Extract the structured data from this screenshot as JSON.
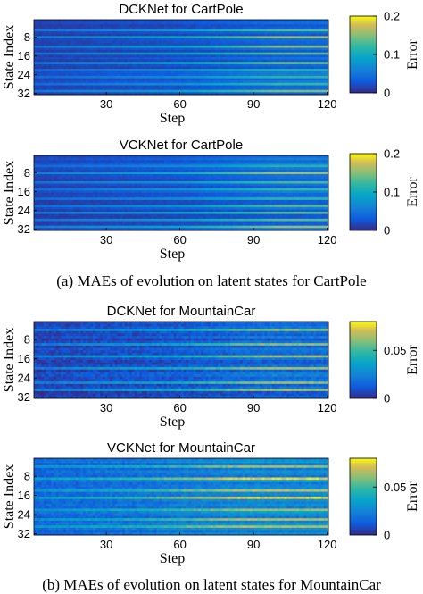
{
  "captions": {
    "a": "(a) MAEs of evolution on latent states for CartPole",
    "b": "(b) MAEs of evolution on latent states for MountainCar"
  },
  "chart_data": [
    {
      "type": "heatmap",
      "title": "DCKNet for CartPole",
      "xlabel": "Step",
      "ylabel": "State Index",
      "colorbar_label": "Error",
      "x_ticks": [
        30,
        60,
        90,
        120
      ],
      "y_ticks": [
        8,
        16,
        24,
        32
      ],
      "colorbar_ticks": [
        "0",
        "0.1",
        "0.2"
      ],
      "xlim": [
        1,
        120
      ],
      "ylim": [
        1,
        32
      ],
      "clim": [
        0,
        0.2
      ],
      "colormap": "parula",
      "rows": 32,
      "cols": 120,
      "bright_rows": [
        5,
        8,
        12,
        15,
        19,
        22,
        25,
        28,
        31
      ],
      "error_rise_starts_at_step": 60
    },
    {
      "type": "heatmap",
      "title": "VCKNet for CartPole",
      "xlabel": "Step",
      "ylabel": "State Index",
      "colorbar_label": "Error",
      "x_ticks": [
        30,
        60,
        90,
        120
      ],
      "y_ticks": [
        8,
        16,
        24,
        32
      ],
      "colorbar_ticks": [
        "0",
        "0.1",
        "0.2"
      ],
      "xlim": [
        1,
        120
      ],
      "ylim": [
        1,
        32
      ],
      "clim": [
        0,
        0.2
      ],
      "colormap": "parula",
      "rows": 32,
      "cols": 120,
      "bright_rows": [
        5,
        8,
        12,
        15,
        19,
        22,
        25,
        28,
        31
      ],
      "error_rise_starts_at_step": 60
    },
    {
      "type": "heatmap",
      "title": "DCKNet for MountainCar",
      "xlabel": "Step",
      "ylabel": "State Index",
      "colorbar_label": "Error",
      "x_ticks": [
        30,
        60,
        90,
        120
      ],
      "y_ticks": [
        8,
        16,
        24,
        32
      ],
      "colorbar_ticks": [
        "0",
        "0.05"
      ],
      "xlim": [
        1,
        120
      ],
      "ylim": [
        1,
        32
      ],
      "clim": [
        0,
        0.08
      ],
      "colormap": "parula",
      "rows": 32,
      "cols": 120,
      "bright_rows": [
        4,
        10,
        15,
        20,
        26,
        29
      ],
      "error_rise_starts_at_step": 55
    },
    {
      "type": "heatmap",
      "title": "VCKNet for MountainCar",
      "xlabel": "Step",
      "ylabel": "State Index",
      "colorbar_label": "Error",
      "x_ticks": [
        30,
        60,
        90,
        120
      ],
      "y_ticks": [
        8,
        16,
        24,
        32
      ],
      "colorbar_ticks": [
        "0",
        "0.05"
      ],
      "xlim": [
        1,
        120
      ],
      "ylim": [
        1,
        32
      ],
      "clim": [
        0,
        0.08
      ],
      "colormap": "parula",
      "rows": 32,
      "cols": 120,
      "bright_rows": [
        4,
        9,
        14,
        17,
        22,
        26,
        29
      ],
      "error_rise_starts_at_step": 45
    }
  ]
}
